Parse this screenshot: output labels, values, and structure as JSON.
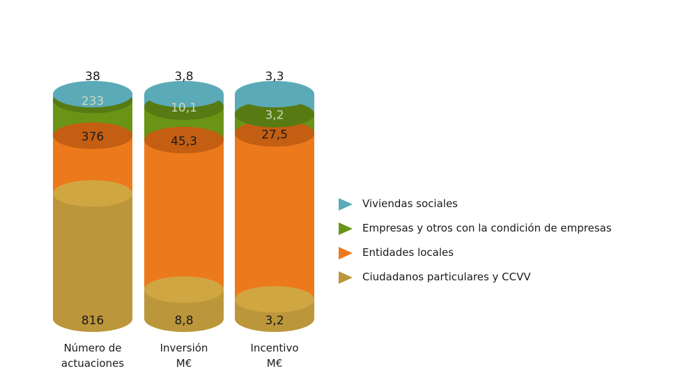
{
  "chart_data": {
    "type": "stacked-cylinder",
    "title": "",
    "categories": [
      "Número de actuaciones",
      "Inversión M€",
      "Incentivo M€"
    ],
    "category_label_lines": [
      [
        "Número de",
        "actuaciones"
      ],
      [
        "Inversión",
        "M€"
      ],
      [
        "Incentivo",
        "M€"
      ]
    ],
    "series": [
      {
        "name": "Ciudadanos particulares y CCVV",
        "values": [
          816,
          8.8,
          3.2
        ],
        "labels": [
          "816",
          "8,8",
          "3,2"
        ],
        "color": "#BC963A",
        "top_color": "#D0A642",
        "label_color": "#1a1a1a"
      },
      {
        "name": "Entidades locales",
        "values": [
          376,
          45.3,
          27.5
        ],
        "labels": [
          "376",
          "45,3",
          "27,5"
        ],
        "color": "#EC7A1C",
        "top_color": "#C45E12",
        "label_color": "#1a1a1a"
      },
      {
        "name": "Empresas y otros con la condición de empresas",
        "values": [
          233,
          10.1,
          3.2
        ],
        "labels": [
          "233",
          "10,1",
          "3,2"
        ],
        "color": "#6A9416",
        "top_color": "#577B12",
        "label_color": "#cfd8c0"
      },
      {
        "name": "Viviendas sociales",
        "values": [
          38,
          3.8,
          3.3
        ],
        "labels": [
          "38",
          "3,8",
          "3,3"
        ],
        "color": "#5BAAB7",
        "top_color": "#5BAAB7",
        "label_color": "#1a1a1a"
      }
    ],
    "normalized": true,
    "legend_position": "right"
  }
}
